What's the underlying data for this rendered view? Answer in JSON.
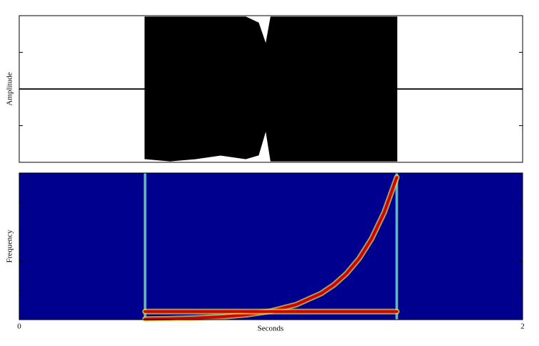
{
  "chart_data": [
    {
      "type": "envelope",
      "ylabel": "Amplitude",
      "x": [
        0,
        0.5,
        0.5,
        0.6,
        0.7,
        0.8,
        0.9,
        0.95,
        0.98,
        1.0,
        1.05,
        1.1,
        1.2,
        1.3,
        1.4,
        1.5,
        1.5,
        2
      ],
      "series": [
        {
          "color": "#000000",
          "values": [
            0,
            0,
            0.98,
            0.98,
            0.98,
            0.98,
            0.98,
            0.9,
            0.6,
            0.98,
            0.98,
            0.98,
            0.98,
            0.98,
            0.98,
            0.98,
            0,
            0
          ]
        },
        {
          "color": "#000000",
          "values": [
            0,
            0,
            -0.95,
            -0.98,
            -0.95,
            -0.9,
            -0.95,
            -0.9,
            -0.55,
            -0.98,
            -0.98,
            -0.98,
            -0.98,
            -0.98,
            -0.98,
            -0.98,
            0,
            0
          ]
        }
      ],
      "xlim": [
        0,
        2
      ],
      "ylim": [
        -1,
        1
      ],
      "yticks": [
        -0.5,
        0,
        0.5
      ]
    },
    {
      "type": "spectrogram",
      "ylabel": "Frequency",
      "xlabel": "Seconds",
      "background": "#00008f",
      "series": [
        {
          "color": "#d40000",
          "x": [
            0.5,
            0.6,
            0.7,
            0.8,
            0.9,
            1.0,
            1.1,
            1.2,
            1.25,
            1.3,
            1.35,
            1.4,
            1.45,
            1.5
          ],
          "values": [
            0.0035,
            0.0061,
            0.0108,
            0.019,
            0.033,
            0.058,
            0.102,
            0.179,
            0.237,
            0.314,
            0.416,
            0.552,
            0.731,
            0.97
          ]
        },
        {
          "color": "#d40000",
          "x": [
            0.5,
            1.5
          ],
          "values": [
            0.055,
            0.055
          ]
        }
      ],
      "events": [
        0.5,
        1.5
      ],
      "event_color": "#40c8ff",
      "xlim": [
        0,
        2
      ],
      "xticks": [
        0,
        2
      ],
      "ylim": [
        0,
        1
      ],
      "yticks": [
        0.2,
        0.4,
        0.6,
        0.8
      ]
    }
  ]
}
